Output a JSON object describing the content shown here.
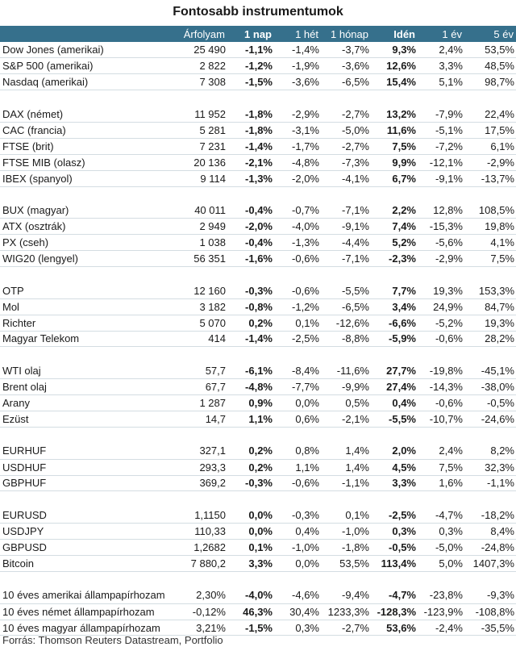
{
  "title": "Fontosabb instrumentumok",
  "source": "Forrás: Thomson Reuters Datastream, Portfolio",
  "chart_data": {
    "type": "table",
    "columns": [
      "",
      "Árfolyam",
      "1 nap",
      "1 hét",
      "1 hónap",
      "Idén",
      "1 év",
      "5 év"
    ],
    "groups": [
      [
        [
          "Dow Jones (amerikai)",
          "25 490",
          "-1,1%",
          "-1,4%",
          "-3,7%",
          "9,3%",
          "2,4%",
          "53,5%"
        ],
        [
          "S&P 500 (amerikai)",
          "2 822",
          "-1,2%",
          "-1,9%",
          "-3,6%",
          "12,6%",
          "3,3%",
          "48,5%"
        ],
        [
          "Nasdaq (amerikai)",
          "7 308",
          "-1,5%",
          "-3,6%",
          "-6,5%",
          "15,4%",
          "5,1%",
          "98,7%"
        ]
      ],
      [
        [
          "DAX (német)",
          "11 952",
          "-1,8%",
          "-2,9%",
          "-2,7%",
          "13,2%",
          "-7,9%",
          "22,4%"
        ],
        [
          "CAC (francia)",
          "5 281",
          "-1,8%",
          "-3,1%",
          "-5,0%",
          "11,6%",
          "-5,1%",
          "17,5%"
        ],
        [
          "FTSE (brit)",
          "7 231",
          "-1,4%",
          "-1,7%",
          "-2,7%",
          "7,5%",
          "-7,2%",
          "6,1%"
        ],
        [
          "FTSE MIB (olasz)",
          "20 136",
          "-2,1%",
          "-4,8%",
          "-7,3%",
          "9,9%",
          "-12,1%",
          "-2,9%"
        ],
        [
          "IBEX (spanyol)",
          "9 114",
          "-1,3%",
          "-2,0%",
          "-4,1%",
          "6,7%",
          "-9,1%",
          "-13,7%"
        ]
      ],
      [
        [
          "BUX (magyar)",
          "40 011",
          "-0,4%",
          "-0,7%",
          "-7,1%",
          "2,2%",
          "12,8%",
          "108,5%"
        ],
        [
          "ATX (osztrák)",
          "2 949",
          "-2,0%",
          "-4,0%",
          "-9,1%",
          "7,4%",
          "-15,3%",
          "19,8%"
        ],
        [
          "PX (cseh)",
          "1 038",
          "-0,4%",
          "-1,3%",
          "-4,4%",
          "5,2%",
          "-5,6%",
          "4,1%"
        ],
        [
          "WIG20 (lengyel)",
          "56 351",
          "-1,6%",
          "-0,6%",
          "-7,1%",
          "-2,3%",
          "-2,9%",
          "7,5%"
        ]
      ],
      [
        [
          "OTP",
          "12 160",
          "-0,3%",
          "-0,6%",
          "-5,5%",
          "7,7%",
          "19,3%",
          "153,3%"
        ],
        [
          "Mol",
          "3 182",
          "-0,8%",
          "-1,2%",
          "-6,5%",
          "3,4%",
          "24,9%",
          "84,7%"
        ],
        [
          "Richter",
          "5 070",
          "0,2%",
          "0,1%",
          "-12,6%",
          "-6,6%",
          "-5,2%",
          "19,3%"
        ],
        [
          "Magyar Telekom",
          "414",
          "-1,4%",
          "-2,5%",
          "-8,8%",
          "-5,9%",
          "-0,6%",
          "28,2%"
        ]
      ],
      [
        [
          "WTI olaj",
          "57,7",
          "-6,1%",
          "-8,4%",
          "-11,6%",
          "27,7%",
          "-19,8%",
          "-45,1%"
        ],
        [
          "Brent olaj",
          "67,7",
          "-4,8%",
          "-7,7%",
          "-9,9%",
          "27,4%",
          "-14,3%",
          "-38,0%"
        ],
        [
          "Arany",
          "1 287",
          "0,9%",
          "0,0%",
          "0,5%",
          "0,4%",
          "-0,6%",
          "-0,5%"
        ],
        [
          "Ezüst",
          "14,7",
          "1,1%",
          "0,6%",
          "-2,1%",
          "-5,5%",
          "-10,7%",
          "-24,6%"
        ]
      ],
      [
        [
          "EURHUF",
          "327,1",
          "0,2%",
          "0,8%",
          "1,4%",
          "2,0%",
          "2,4%",
          "8,2%"
        ],
        [
          "USDHUF",
          "293,3",
          "0,2%",
          "1,1%",
          "1,4%",
          "4,5%",
          "7,5%",
          "32,3%"
        ],
        [
          "GBPHUF",
          "369,2",
          "-0,3%",
          "-0,6%",
          "-1,1%",
          "3,3%",
          "1,6%",
          "-1,1%"
        ]
      ],
      [
        [
          "EURUSD",
          "1,1150",
          "0,0%",
          "-0,3%",
          "0,1%",
          "-2,5%",
          "-4,7%",
          "-18,2%"
        ],
        [
          "USDJPY",
          "110,33",
          "0,0%",
          "0,4%",
          "-1,0%",
          "0,3%",
          "0,3%",
          "8,4%"
        ],
        [
          "GBPUSD",
          "1,2682",
          "0,1%",
          "-1,0%",
          "-1,8%",
          "-0,5%",
          "-5,0%",
          "-24,8%"
        ],
        [
          "Bitcoin",
          "7 880,2",
          "3,3%",
          "0,0%",
          "53,5%",
          "113,4%",
          "5,0%",
          "1407,3%"
        ]
      ],
      [
        [
          "10 éves amerikai állampapírhozam",
          "2,30%",
          "-4,0%",
          "-4,6%",
          "-9,4%",
          "-4,7%",
          "-23,8%",
          "-9,3%"
        ],
        [
          "10 éves német állampapírhozam",
          "-0,12%",
          "46,3%",
          "30,4%",
          "1233,3%",
          "-128,3%",
          "-123,9%",
          "-108,8%"
        ],
        [
          "10 éves magyar állampapírhozam",
          "3,21%",
          "-1,5%",
          "0,3%",
          "-2,7%",
          "53,6%",
          "-2,4%",
          "-35,5%"
        ]
      ]
    ]
  }
}
